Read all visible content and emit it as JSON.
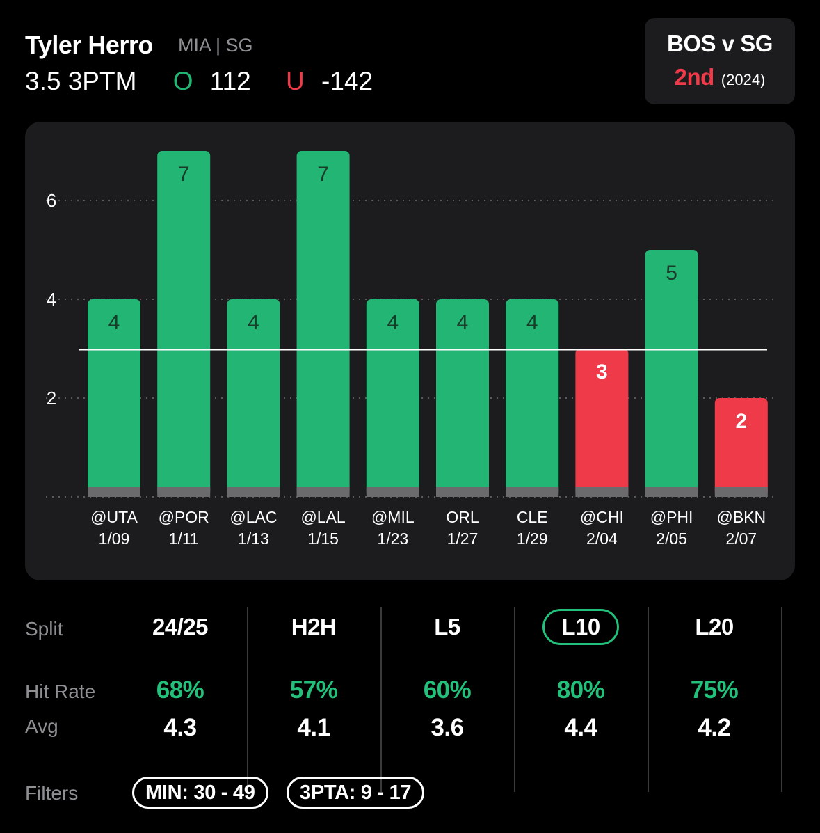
{
  "header": {
    "player_name": "Tyler Herro",
    "player_meta": "MIA | SG",
    "line_label": "3.5 3PTM",
    "over_symbol": "O",
    "over_odds": "112",
    "under_symbol": "U",
    "under_odds": "-142"
  },
  "matchup": {
    "title": "BOS v SG",
    "rank": "2nd",
    "year": "(2024)"
  },
  "colors": {
    "hit": "#22b573",
    "miss": "#ef3a4a",
    "accent": "#22c07a",
    "card": "#1c1c1e"
  },
  "chart_data": {
    "type": "bar",
    "categories": [
      "@UTA",
      "@POR",
      "@LAC",
      "@LAL",
      "@MIL",
      "ORL",
      "CLE",
      "@CHI",
      "@PHI",
      "@BKN"
    ],
    "dates": [
      "1/09",
      "1/11",
      "1/13",
      "1/15",
      "1/23",
      "1/27",
      "1/29",
      "2/04",
      "2/05",
      "2/07"
    ],
    "values": [
      4,
      7,
      4,
      7,
      4,
      4,
      4,
      3,
      5,
      2
    ],
    "line": 3.5,
    "y_ticks": [
      "2",
      "4",
      "6"
    ],
    "ylim": [
      0,
      8
    ],
    "grid": true
  },
  "stats": {
    "split_label": "Split",
    "hit_rate_label": "Hit Rate",
    "avg_label": "Avg",
    "columns": [
      {
        "split": "24/25",
        "hit_rate": "68%",
        "avg": "4.3"
      },
      {
        "split": "H2H",
        "hit_rate": "57%",
        "avg": "4.1"
      },
      {
        "split": "L5",
        "hit_rate": "60%",
        "avg": "3.6"
      },
      {
        "split": "L10",
        "hit_rate": "80%",
        "avg": "4.4"
      },
      {
        "split": "L20",
        "hit_rate": "75%",
        "avg": "4.2"
      }
    ],
    "selected_split": "L10"
  },
  "filters": {
    "label": "Filters",
    "chips": [
      "MIN: 30 - 49",
      "3PTA: 9 - 17"
    ]
  }
}
